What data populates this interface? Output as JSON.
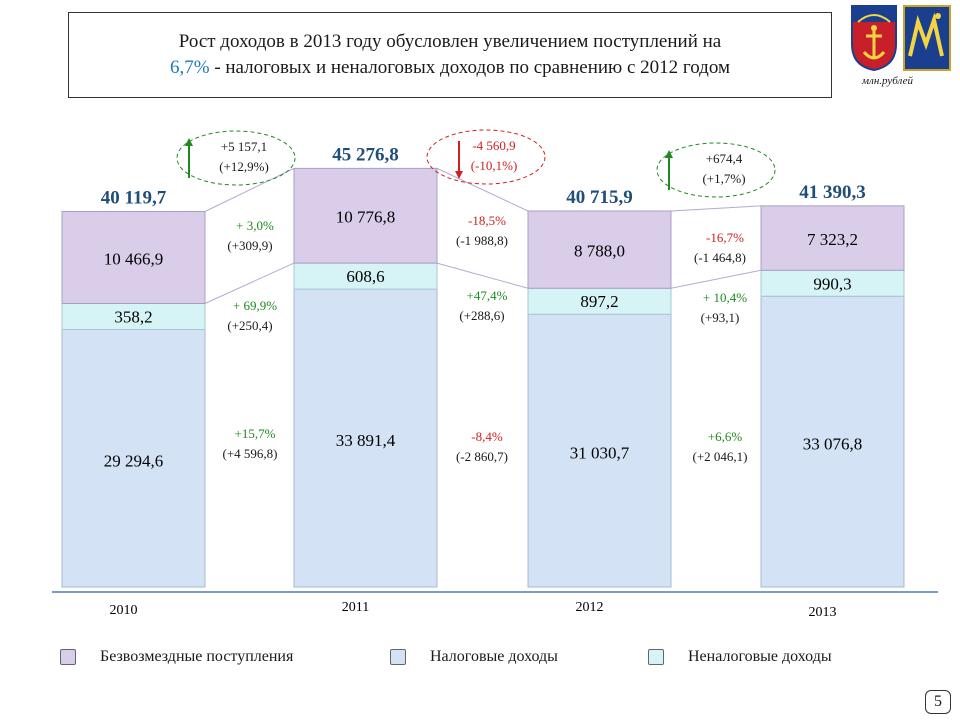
{
  "title": {
    "part1": "Рост доходов в 2013 году обусловлен увеличением поступлений на",
    "highlight": "6,7%",
    "part2": " - налоговых и неналоговых доходов по сравнению с 2012 годом"
  },
  "units": "млн.рублей",
  "page_number": "5",
  "colors": {
    "gratuitous": "#d9cdea",
    "tax": "#d4e2f5",
    "nontax": "#d6f3f6",
    "positive": "#1f8a1f",
    "negative": "#d22020",
    "total": "#1f4e79",
    "baseline": "#4a7cc0"
  },
  "chart_data": {
    "type": "bar",
    "stacked": true,
    "categories": [
      "2010",
      "2011",
      "2012",
      "2013"
    ],
    "totals": [
      "40 119,7",
      "45 276,8",
      "40 715,9",
      "41 390,3"
    ],
    "series": [
      {
        "name": "Налоговые доходы",
        "values": [
          29294.6,
          33891.4,
          31030.7,
          33076.8
        ],
        "labels": [
          "29 294,6",
          "33 891,4",
          "31 030,7",
          "33 076,8"
        ]
      },
      {
        "name": "Неналоговые доходы",
        "values": [
          358.2,
          608.6,
          897.2,
          990.3
        ],
        "labels": [
          "358,2",
          "608,6",
          "897,2",
          "990,3"
        ]
      },
      {
        "name": "Безвозмездные поступления",
        "values": [
          10466.9,
          10776.8,
          8788.0,
          7323.2
        ],
        "labels": [
          "10 466,9",
          "10 776,8",
          "8 788,0",
          "7 323,2"
        ]
      }
    ],
    "changes": [
      {
        "between": [
          "2010",
          "2011"
        ],
        "sign": "up",
        "total": {
          "abs": "+5 157,1",
          "pct": "(+12,9%)"
        },
        "gratuitous": {
          "pct": "+ 3,0%",
          "abs": "(+309,9)"
        },
        "nontax": {
          "pct": "+ 69,9%",
          "abs": "(+250,4)"
        },
        "tax": {
          "pct": "+15,7%",
          "abs": "(+4 596,8)"
        }
      },
      {
        "between": [
          "2011",
          "2012"
        ],
        "sign": "down",
        "total": {
          "abs": "-4 560,9",
          "pct": "(-10,1%)"
        },
        "gratuitous": {
          "pct": "-18,5%",
          "abs": "(-1 988,8)"
        },
        "nontax": {
          "pct": "+47,4%",
          "abs": "(+288,6)"
        },
        "tax": {
          "pct": "-8,4%",
          "abs": "(-2 860,7)"
        }
      },
      {
        "between": [
          "2012",
          "2013"
        ],
        "sign": "up",
        "total": {
          "abs": "+674,4",
          "pct": "(+1,7%)"
        },
        "gratuitous": {
          "pct": "-16,7%",
          "abs": "(-1 464,8)"
        },
        "nontax": {
          "pct": "+ 10,4%",
          "abs": "(+93,1)"
        },
        "tax": {
          "pct": "+6,6%",
          "abs": "(+2 046,1)"
        }
      }
    ],
    "legend": [
      "Безвозмездные поступления",
      "Налоговые доходы",
      "Неналоговые доходы"
    ]
  }
}
